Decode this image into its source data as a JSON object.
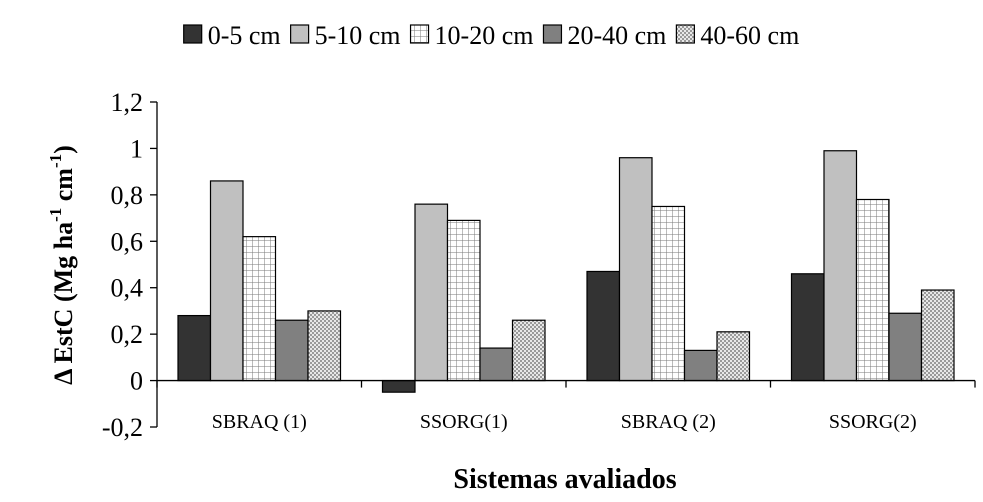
{
  "chart_data": {
    "type": "bar",
    "title": "",
    "xlabel": "Sistemas avaliados",
    "ylabel": {
      "prefix": "Δ EstC (Mg ha",
      "sup1": "-1",
      "middle": " cm",
      "sup2": "-1",
      "suffix": ")"
    },
    "ylim": [
      -0.2,
      1.2
    ],
    "yticks": [
      -0.2,
      0,
      0.2,
      0.4,
      0.6,
      0.8,
      1,
      1.2
    ],
    "ytick_labels": [
      "-0,2",
      "0",
      "0,2",
      "0,4",
      "0,6",
      "0,8",
      "1",
      "1,2"
    ],
    "categories": [
      "SBRAQ (1)",
      "SSORG(1)",
      "SBRAQ (2)",
      "SSORG(2)"
    ],
    "legend_position": "top",
    "grid": false,
    "series": [
      {
        "name": "0-5 cm",
        "values": [
          0.28,
          -0.05,
          0.47,
          0.46
        ],
        "fill": "#333333",
        "pattern": "solid"
      },
      {
        "name": "5-10 cm",
        "values": [
          0.86,
          0.76,
          0.96,
          0.99
        ],
        "fill": "#c0c0c0",
        "pattern": "solid"
      },
      {
        "name": "10-20 cm",
        "values": [
          0.62,
          0.69,
          0.75,
          0.78
        ],
        "fill": "#ffffff",
        "pattern": "grid"
      },
      {
        "name": "20-40 cm",
        "values": [
          0.26,
          0.14,
          0.13,
          0.29
        ],
        "fill": "#808080",
        "pattern": "solid"
      },
      {
        "name": "40-60 cm",
        "values": [
          0.3,
          0.26,
          0.21,
          0.39
        ],
        "fill": "#d9d9d9",
        "pattern": "checker"
      }
    ]
  }
}
